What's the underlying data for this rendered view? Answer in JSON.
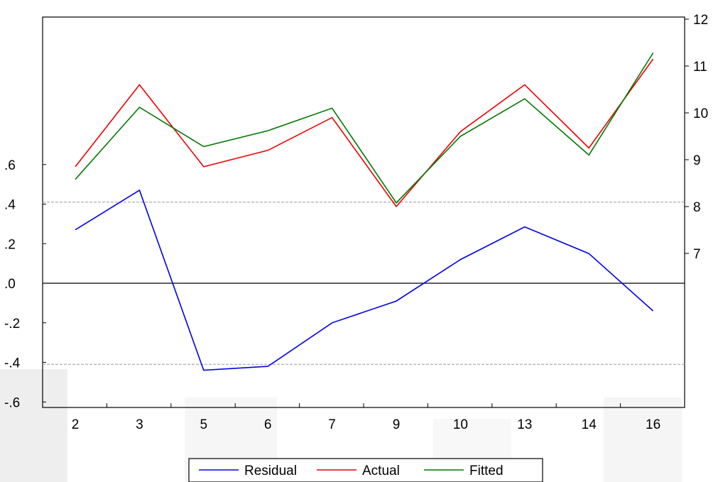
{
  "chart_data": {
    "type": "line",
    "categories": [
      "2",
      "3",
      "5",
      "6",
      "7",
      "9",
      "10",
      "13",
      "14",
      "16"
    ],
    "left_axis": {
      "ticks": [
        -0.6,
        -0.4,
        -0.2,
        0.0,
        0.2,
        0.4,
        0.6
      ],
      "tick_labels": [
        "-.6",
        "-.4",
        "-.2",
        ".0",
        ".2",
        ".4",
        ".6"
      ],
      "ylim": [
        -0.6,
        1.35
      ]
    },
    "right_axis": {
      "ticks": [
        7,
        8,
        9,
        10,
        11,
        12
      ],
      "tick_labels": [
        "7",
        "8",
        "9",
        "10",
        "11",
        "12"
      ],
      "ylim": [
        6.55,
        12.0
      ]
    },
    "reference_lines": {
      "zero": 0.0,
      "upper_dashed": 0.41,
      "lower_dashed": -0.41
    },
    "series": [
      {
        "name": "Residual",
        "axis": "left",
        "color": "#0000ee",
        "values": [
          0.27,
          0.47,
          -0.44,
          -0.42,
          -0.2,
          -0.09,
          0.12,
          0.285,
          0.15,
          -0.14
        ]
      },
      {
        "name": "Actual",
        "axis": "right",
        "color": "#ee0000",
        "values": [
          8.85,
          10.6,
          8.85,
          9.2,
          9.9,
          8.0,
          9.6,
          10.6,
          9.25,
          11.15
        ]
      },
      {
        "name": "Fitted",
        "axis": "right",
        "color": "#007700",
        "values": [
          8.58,
          10.12,
          9.28,
          9.62,
          10.1,
          8.08,
          9.5,
          10.3,
          9.1,
          11.28
        ]
      }
    ],
    "grid": false,
    "legend_position": "bottom-center",
    "colors": {
      "axis": "#000000",
      "dashed": "#999999"
    }
  }
}
